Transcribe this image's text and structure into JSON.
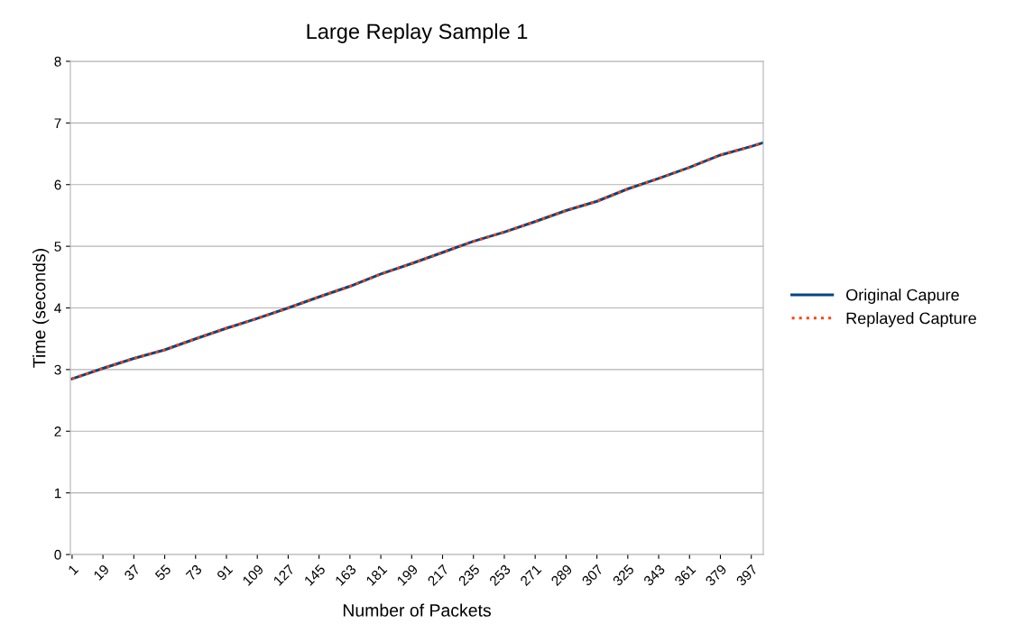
{
  "chart_data": {
    "type": "line",
    "title": "Large Replay Sample 1",
    "xlabel": "Number of Packets",
    "ylabel": "Time (seconds)",
    "x": [
      1,
      19,
      37,
      55,
      73,
      91,
      109,
      127,
      145,
      163,
      181,
      199,
      217,
      235,
      253,
      271,
      289,
      307,
      325,
      343,
      361,
      379,
      397,
      404
    ],
    "series": [
      {
        "name": "Original Capure",
        "color": "#004586",
        "line_style": "solid",
        "values": [
          2.85,
          3.02,
          3.18,
          3.32,
          3.5,
          3.67,
          3.83,
          4.0,
          4.18,
          4.35,
          4.55,
          4.72,
          4.9,
          5.08,
          5.23,
          5.4,
          5.58,
          5.73,
          5.93,
          6.1,
          6.28,
          6.48,
          6.62,
          6.68
        ]
      },
      {
        "name": "Replayed Capture",
        "color": "#ff420e",
        "line_style": "dotted",
        "values": [
          2.85,
          3.02,
          3.18,
          3.32,
          3.5,
          3.67,
          3.83,
          4.0,
          4.18,
          4.35,
          4.55,
          4.72,
          4.9,
          5.08,
          5.23,
          5.4,
          5.58,
          5.73,
          5.93,
          6.1,
          6.28,
          6.48,
          6.62,
          6.68
        ]
      }
    ],
    "xlim": [
      0,
      404
    ],
    "xticks": [
      1,
      19,
      37,
      55,
      73,
      91,
      109,
      127,
      145,
      163,
      181,
      199,
      217,
      235,
      253,
      271,
      289,
      307,
      325,
      343,
      361,
      379,
      397
    ],
    "ylim": [
      0,
      8
    ],
    "yticks": [
      0,
      1,
      2,
      3,
      4,
      5,
      6,
      7,
      8
    ],
    "grid": "y",
    "legend": "right",
    "marker": "none"
  }
}
